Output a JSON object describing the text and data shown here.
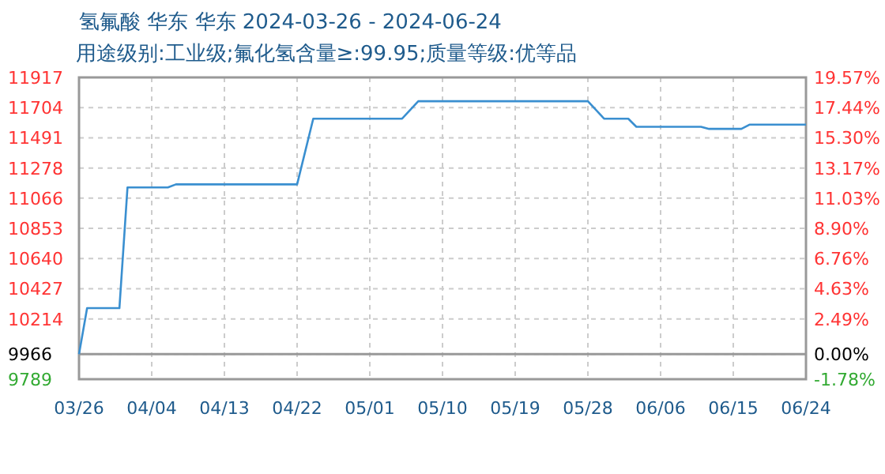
{
  "chart_data": {
    "type": "line",
    "title": "氢氟酸 华东 华东 2024-03-26 - 2024-06-24",
    "subtitle": "用途级别:工业级;氟化氢含量≥:99.95;质量等级:优等品",
    "x": [
      "--03-26",
      "--03-27",
      "--03-31",
      "--04-01",
      "--04-06",
      "--04-07",
      "--04-22",
      "--04-24",
      "--05-05",
      "--05-07",
      "--05-28",
      "--05-30",
      "--06-02",
      "--06-03",
      "--06-11",
      "--06-12",
      "--06-16",
      "--06-17",
      "--06-24"
    ],
    "series": [
      {
        "color": "#3a8fd0",
        "values": [
          9966,
          10290,
          10290,
          11141,
          11141,
          11163,
          11163,
          11626,
          11626,
          11749,
          11749,
          11626,
          11626,
          11569,
          11569,
          11554,
          11554,
          11584,
          11584
        ]
      }
    ],
    "xlim": [
      "--03-26",
      "--06-24"
    ],
    "xticks": [
      {
        "value": "--03-26",
        "label": "03/26"
      },
      {
        "value": "--04-04",
        "label": "04/04"
      },
      {
        "value": "--04-13",
        "label": "04/13"
      },
      {
        "value": "--04-22",
        "label": "04/22"
      },
      {
        "value": "--05-01",
        "label": "05/01"
      },
      {
        "value": "--05-10",
        "label": "05/10"
      },
      {
        "value": "--05-19",
        "label": "05/19"
      },
      {
        "value": "--05-28",
        "label": "05/28"
      },
      {
        "value": "--06-06",
        "label": "06/06"
      },
      {
        "value": "--06-15",
        "label": "06/15"
      },
      {
        "value": "--06-24",
        "label": "06/24"
      }
    ],
    "ylim": [
      9789,
      11917
    ],
    "yticks": [
      9789,
      9966,
      10214,
      10427,
      10640,
      10853,
      11066,
      11278,
      11491,
      11704,
      11917
    ],
    "y2lim": [
      -1.78,
      19.57
    ],
    "y2ticks": [
      {
        "value": -1.78,
        "label": "-1.78%"
      },
      {
        "value": 0,
        "label": "0.00%"
      },
      {
        "value": 2.49,
        "label": "2.49%"
      },
      {
        "value": 4.63,
        "label": "4.63%"
      },
      {
        "value": 6.76,
        "label": "6.76%"
      },
      {
        "value": 8.9,
        "label": "8.90%"
      },
      {
        "value": 11.03,
        "label": "11.03%"
      },
      {
        "value": 13.17,
        "label": "13.17%"
      },
      {
        "value": 15.3,
        "label": "15.30%"
      },
      {
        "value": 17.44,
        "label": "17.44%"
      },
      {
        "value": 19.57,
        "label": "19.57%"
      }
    ],
    "ref_lines": [
      {
        "axis": "y",
        "value": 9966,
        "color": "#999999"
      }
    ],
    "grid": true,
    "line_style": "solid"
  }
}
